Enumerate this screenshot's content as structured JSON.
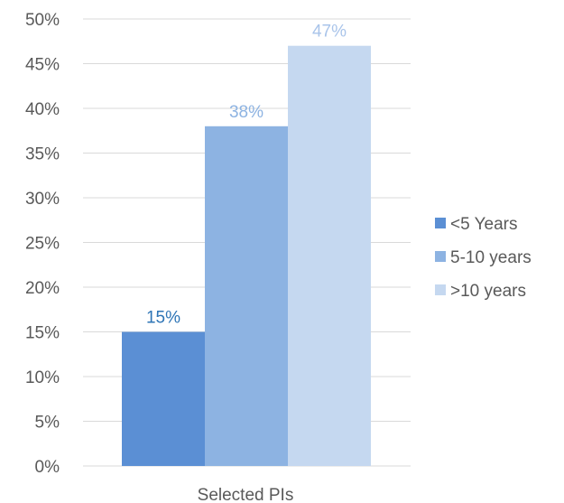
{
  "chart_data": {
    "type": "bar",
    "categories": [
      "Selected PIs"
    ],
    "series": [
      {
        "name": "<5 Years",
        "values": [
          15
        ],
        "color": "#5b8fd4",
        "label": "15%",
        "label_color": "#2e75b6"
      },
      {
        "name": "5-10 years",
        "values": [
          38
        ],
        "color": "#8db3e2",
        "label": "38%",
        "label_color": "#8db3e2"
      },
      {
        "name": ">10 years",
        "values": [
          47
        ],
        "color": "#c5d8f0",
        "label": "47%",
        "label_color": "#a9c4ea"
      }
    ],
    "y_ticks": [
      {
        "value": 0,
        "label": "0%"
      },
      {
        "value": 5,
        "label": "5%"
      },
      {
        "value": 10,
        "label": "10%"
      },
      {
        "value": 15,
        "label": "15%"
      },
      {
        "value": 20,
        "label": "20%"
      },
      {
        "value": 25,
        "label": "25%"
      },
      {
        "value": 30,
        "label": "30%"
      },
      {
        "value": 35,
        "label": "35%"
      },
      {
        "value": 40,
        "label": "40%"
      },
      {
        "value": 45,
        "label": "45%"
      },
      {
        "value": 50,
        "label": "50%"
      }
    ],
    "ylim": [
      0,
      50
    ],
    "title": "",
    "xlabel": "",
    "ylabel": "",
    "grid": true,
    "gridline_color": "#d9d9d9",
    "legend": "right"
  }
}
